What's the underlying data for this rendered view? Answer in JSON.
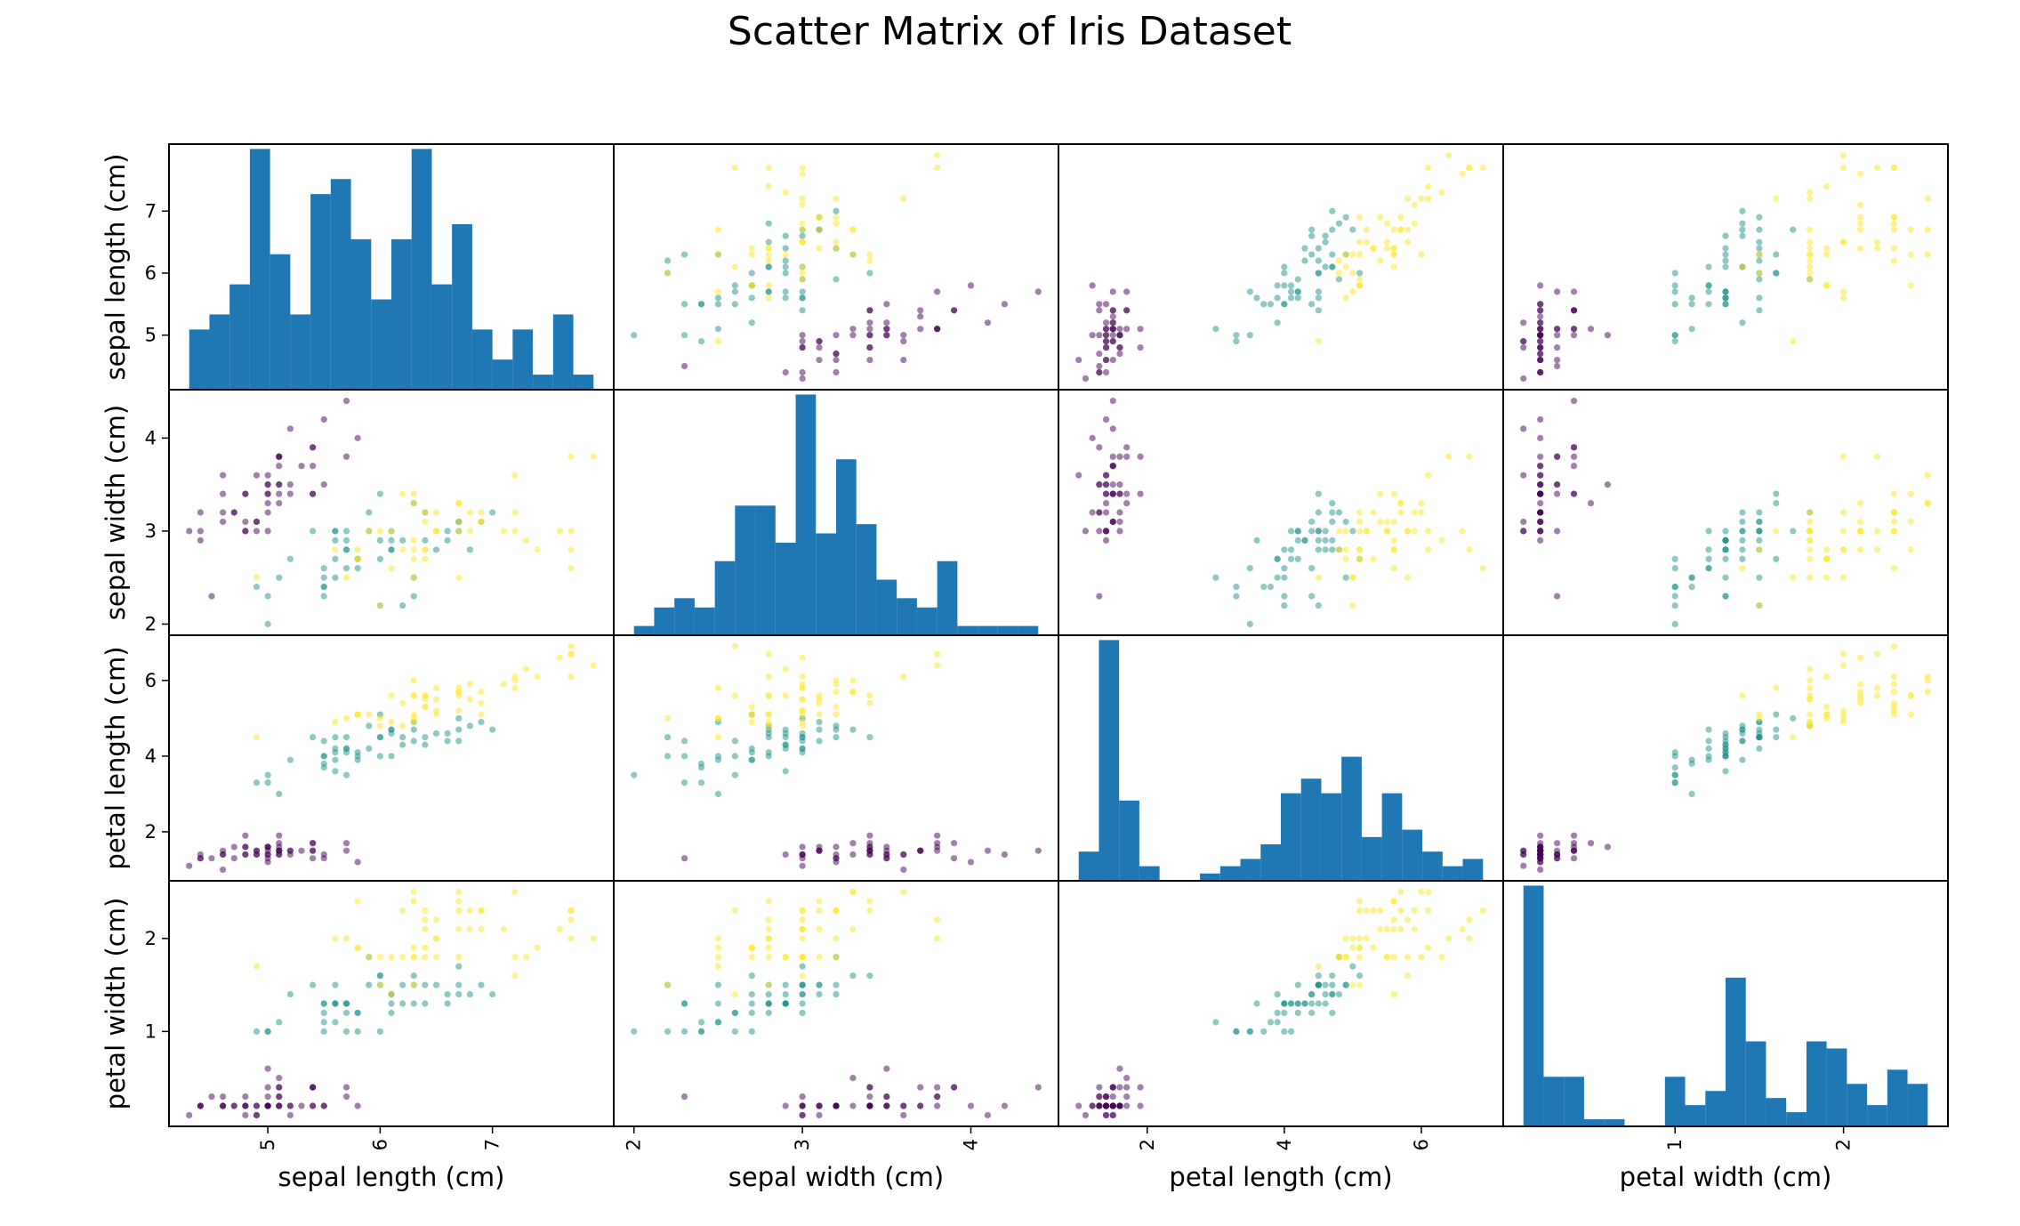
{
  "chart_data": {
    "type": "scatter",
    "title": "Scatter Matrix of Iris Dataset",
    "variables": [
      "sepal length (cm)",
      "sepal width (cm)",
      "petal length (cm)",
      "petal width (cm)"
    ],
    "ranges": [
      [
        4.3,
        7.9
      ],
      [
        2.0,
        4.4
      ],
      [
        1.0,
        6.9
      ],
      [
        0.1,
        2.5
      ]
    ],
    "ticks": [
      [
        5,
        6,
        7
      ],
      [
        2,
        3,
        4
      ],
      [
        2,
        4,
        6
      ],
      [
        1,
        2
      ]
    ],
    "tick_labels": [
      [
        "5",
        "6",
        "7"
      ],
      [
        "2",
        "3",
        "4"
      ],
      [
        "2",
        "4",
        "6"
      ],
      [
        "1",
        "2"
      ]
    ],
    "hist_bins": 20,
    "hist_color": "#1f77b4",
    "point_alpha": 0.5,
    "class_colors": [
      "#440154",
      "#21918c",
      "#fde725"
    ],
    "grid": false,
    "points": [
      [
        5.1,
        3.5,
        1.4,
        0.2,
        0
      ],
      [
        4.9,
        3.0,
        1.4,
        0.2,
        0
      ],
      [
        4.7,
        3.2,
        1.3,
        0.2,
        0
      ],
      [
        4.6,
        3.1,
        1.5,
        0.2,
        0
      ],
      [
        5.0,
        3.6,
        1.4,
        0.2,
        0
      ],
      [
        5.4,
        3.9,
        1.7,
        0.4,
        0
      ],
      [
        4.6,
        3.4,
        1.4,
        0.3,
        0
      ],
      [
        5.0,
        3.4,
        1.5,
        0.2,
        0
      ],
      [
        4.4,
        2.9,
        1.4,
        0.2,
        0
      ],
      [
        4.9,
        3.1,
        1.5,
        0.1,
        0
      ],
      [
        5.4,
        3.7,
        1.5,
        0.2,
        0
      ],
      [
        4.8,
        3.4,
        1.6,
        0.2,
        0
      ],
      [
        4.8,
        3.0,
        1.4,
        0.1,
        0
      ],
      [
        4.3,
        3.0,
        1.1,
        0.1,
        0
      ],
      [
        5.8,
        4.0,
        1.2,
        0.2,
        0
      ],
      [
        5.7,
        4.4,
        1.5,
        0.4,
        0
      ],
      [
        5.4,
        3.9,
        1.3,
        0.4,
        0
      ],
      [
        5.1,
        3.5,
        1.4,
        0.3,
        0
      ],
      [
        5.7,
        3.8,
        1.7,
        0.3,
        0
      ],
      [
        5.1,
        3.8,
        1.5,
        0.3,
        0
      ],
      [
        5.4,
        3.4,
        1.7,
        0.2,
        0
      ],
      [
        5.1,
        3.7,
        1.5,
        0.4,
        0
      ],
      [
        4.6,
        3.6,
        1.0,
        0.2,
        0
      ],
      [
        5.1,
        3.3,
        1.7,
        0.5,
        0
      ],
      [
        4.8,
        3.4,
        1.9,
        0.2,
        0
      ],
      [
        5.0,
        3.0,
        1.6,
        0.2,
        0
      ],
      [
        5.0,
        3.4,
        1.6,
        0.4,
        0
      ],
      [
        5.2,
        3.5,
        1.5,
        0.2,
        0
      ],
      [
        5.2,
        3.4,
        1.4,
        0.2,
        0
      ],
      [
        4.7,
        3.2,
        1.6,
        0.2,
        0
      ],
      [
        4.8,
        3.1,
        1.6,
        0.2,
        0
      ],
      [
        5.4,
        3.4,
        1.5,
        0.4,
        0
      ],
      [
        5.2,
        4.1,
        1.5,
        0.1,
        0
      ],
      [
        5.5,
        4.2,
        1.4,
        0.2,
        0
      ],
      [
        4.9,
        3.1,
        1.5,
        0.2,
        0
      ],
      [
        5.0,
        3.2,
        1.2,
        0.2,
        0
      ],
      [
        5.5,
        3.5,
        1.3,
        0.2,
        0
      ],
      [
        4.9,
        3.6,
        1.4,
        0.1,
        0
      ],
      [
        4.4,
        3.0,
        1.3,
        0.2,
        0
      ],
      [
        5.1,
        3.4,
        1.5,
        0.2,
        0
      ],
      [
        5.0,
        3.5,
        1.3,
        0.3,
        0
      ],
      [
        4.5,
        2.3,
        1.3,
        0.3,
        0
      ],
      [
        4.4,
        3.2,
        1.3,
        0.2,
        0
      ],
      [
        5.0,
        3.5,
        1.6,
        0.6,
        0
      ],
      [
        5.1,
        3.8,
        1.9,
        0.4,
        0
      ],
      [
        4.8,
        3.0,
        1.4,
        0.3,
        0
      ],
      [
        5.1,
        3.8,
        1.6,
        0.2,
        0
      ],
      [
        4.6,
        3.2,
        1.4,
        0.2,
        0
      ],
      [
        5.3,
        3.7,
        1.5,
        0.2,
        0
      ],
      [
        5.0,
        3.3,
        1.4,
        0.2,
        0
      ],
      [
        7.0,
        3.2,
        4.7,
        1.4,
        1
      ],
      [
        6.4,
        3.2,
        4.5,
        1.5,
        1
      ],
      [
        6.9,
        3.1,
        4.9,
        1.5,
        1
      ],
      [
        5.5,
        2.3,
        4.0,
        1.3,
        1
      ],
      [
        6.5,
        2.8,
        4.6,
        1.5,
        1
      ],
      [
        5.7,
        2.8,
        4.5,
        1.3,
        1
      ],
      [
        6.3,
        3.3,
        4.7,
        1.6,
        1
      ],
      [
        4.9,
        2.4,
        3.3,
        1.0,
        1
      ],
      [
        6.6,
        2.9,
        4.6,
        1.3,
        1
      ],
      [
        5.2,
        2.7,
        3.9,
        1.4,
        1
      ],
      [
        5.0,
        2.0,
        3.5,
        1.0,
        1
      ],
      [
        5.9,
        3.0,
        4.2,
        1.5,
        1
      ],
      [
        6.0,
        2.2,
        4.0,
        1.0,
        1
      ],
      [
        6.1,
        2.9,
        4.7,
        1.4,
        1
      ],
      [
        5.6,
        2.9,
        3.6,
        1.3,
        1
      ],
      [
        6.7,
        3.1,
        4.4,
        1.4,
        1
      ],
      [
        5.6,
        3.0,
        4.5,
        1.5,
        1
      ],
      [
        5.8,
        2.7,
        4.1,
        1.0,
        1
      ],
      [
        6.2,
        2.2,
        4.5,
        1.5,
        1
      ],
      [
        5.6,
        2.5,
        3.9,
        1.1,
        1
      ],
      [
        5.9,
        3.2,
        4.8,
        1.8,
        1
      ],
      [
        6.1,
        2.8,
        4.0,
        1.3,
        1
      ],
      [
        6.3,
        2.5,
        4.9,
        1.5,
        1
      ],
      [
        6.1,
        2.8,
        4.7,
        1.2,
        1
      ],
      [
        6.4,
        2.9,
        4.3,
        1.3,
        1
      ],
      [
        6.6,
        3.0,
        4.4,
        1.4,
        1
      ],
      [
        6.8,
        2.8,
        4.8,
        1.4,
        1
      ],
      [
        6.7,
        3.0,
        5.0,
        1.7,
        1
      ],
      [
        6.0,
        2.9,
        4.5,
        1.5,
        1
      ],
      [
        5.7,
        2.6,
        3.5,
        1.0,
        1
      ],
      [
        5.5,
        2.4,
        3.8,
        1.1,
        1
      ],
      [
        5.5,
        2.4,
        3.7,
        1.0,
        1
      ],
      [
        5.8,
        2.7,
        3.9,
        1.2,
        1
      ],
      [
        6.0,
        2.7,
        5.1,
        1.6,
        1
      ],
      [
        5.4,
        3.0,
        4.5,
        1.5,
        1
      ],
      [
        6.0,
        3.4,
        4.5,
        1.6,
        1
      ],
      [
        6.7,
        3.1,
        4.7,
        1.5,
        1
      ],
      [
        6.3,
        2.3,
        4.4,
        1.3,
        1
      ],
      [
        5.6,
        3.0,
        4.1,
        1.3,
        1
      ],
      [
        5.5,
        2.5,
        4.0,
        1.3,
        1
      ],
      [
        5.5,
        2.6,
        4.4,
        1.2,
        1
      ],
      [
        6.1,
        3.0,
        4.6,
        1.4,
        1
      ],
      [
        5.8,
        2.6,
        4.0,
        1.2,
        1
      ],
      [
        5.0,
        2.3,
        3.3,
        1.0,
        1
      ],
      [
        5.6,
        2.7,
        4.2,
        1.3,
        1
      ],
      [
        5.7,
        3.0,
        4.2,
        1.2,
        1
      ],
      [
        5.7,
        2.9,
        4.2,
        1.3,
        1
      ],
      [
        6.2,
        2.9,
        4.3,
        1.3,
        1
      ],
      [
        5.1,
        2.5,
        3.0,
        1.1,
        1
      ],
      [
        5.7,
        2.8,
        4.1,
        1.3,
        1
      ],
      [
        6.3,
        3.3,
        6.0,
        2.5,
        2
      ],
      [
        5.8,
        2.7,
        5.1,
        1.9,
        2
      ],
      [
        7.1,
        3.0,
        5.9,
        2.1,
        2
      ],
      [
        6.3,
        2.9,
        5.6,
        1.8,
        2
      ],
      [
        6.5,
        3.0,
        5.8,
        2.2,
        2
      ],
      [
        7.6,
        3.0,
        6.6,
        2.1,
        2
      ],
      [
        4.9,
        2.5,
        4.5,
        1.7,
        2
      ],
      [
        7.3,
        2.9,
        6.3,
        1.8,
        2
      ],
      [
        6.7,
        2.5,
        5.8,
        1.8,
        2
      ],
      [
        7.2,
        3.6,
        6.1,
        2.5,
        2
      ],
      [
        6.5,
        3.2,
        5.1,
        2.0,
        2
      ],
      [
        6.4,
        2.7,
        5.3,
        1.9,
        2
      ],
      [
        6.8,
        3.0,
        5.5,
        2.1,
        2
      ],
      [
        5.7,
        2.5,
        5.0,
        2.0,
        2
      ],
      [
        5.8,
        2.8,
        5.1,
        2.4,
        2
      ],
      [
        6.4,
        3.2,
        5.3,
        2.3,
        2
      ],
      [
        6.5,
        3.0,
        5.5,
        1.8,
        2
      ],
      [
        7.7,
        3.8,
        6.7,
        2.2,
        2
      ],
      [
        7.7,
        2.6,
        6.9,
        2.3,
        2
      ],
      [
        6.0,
        2.2,
        5.0,
        1.5,
        2
      ],
      [
        6.9,
        3.2,
        5.7,
        2.3,
        2
      ],
      [
        5.6,
        2.8,
        4.9,
        2.0,
        2
      ],
      [
        7.7,
        2.8,
        6.7,
        2.0,
        2
      ],
      [
        6.3,
        2.7,
        4.9,
        1.8,
        2
      ],
      [
        6.7,
        3.3,
        5.7,
        2.1,
        2
      ],
      [
        7.2,
        3.2,
        6.0,
        1.8,
        2
      ],
      [
        6.2,
        2.8,
        4.8,
        1.8,
        2
      ],
      [
        6.1,
        3.0,
        4.9,
        1.8,
        2
      ],
      [
        6.4,
        2.8,
        5.6,
        2.1,
        2
      ],
      [
        7.2,
        3.0,
        5.8,
        1.6,
        2
      ],
      [
        7.4,
        2.8,
        6.1,
        1.9,
        2
      ],
      [
        7.9,
        3.8,
        6.4,
        2.0,
        2
      ],
      [
        6.4,
        2.8,
        5.6,
        2.2,
        2
      ],
      [
        6.3,
        2.8,
        5.1,
        1.5,
        2
      ],
      [
        6.1,
        2.6,
        5.6,
        1.4,
        2
      ],
      [
        7.7,
        3.0,
        6.1,
        2.3,
        2
      ],
      [
        6.3,
        3.4,
        5.6,
        2.4,
        2
      ],
      [
        6.4,
        3.1,
        5.5,
        1.8,
        2
      ],
      [
        6.0,
        3.0,
        4.8,
        1.8,
        2
      ],
      [
        6.9,
        3.1,
        5.4,
        2.1,
        2
      ],
      [
        6.7,
        3.1,
        5.6,
        2.4,
        2
      ],
      [
        6.9,
        3.1,
        5.1,
        2.3,
        2
      ],
      [
        5.8,
        2.7,
        5.1,
        1.9,
        2
      ],
      [
        6.8,
        3.2,
        5.9,
        2.3,
        2
      ],
      [
        6.7,
        3.3,
        5.7,
        2.5,
        2
      ],
      [
        6.7,
        3.0,
        5.2,
        2.3,
        2
      ],
      [
        6.3,
        2.5,
        5.0,
        1.9,
        2
      ],
      [
        6.5,
        3.0,
        5.2,
        2.0,
        2
      ],
      [
        6.2,
        3.4,
        5.4,
        2.3,
        2
      ],
      [
        5.9,
        3.0,
        5.1,
        1.8,
        2
      ]
    ]
  }
}
